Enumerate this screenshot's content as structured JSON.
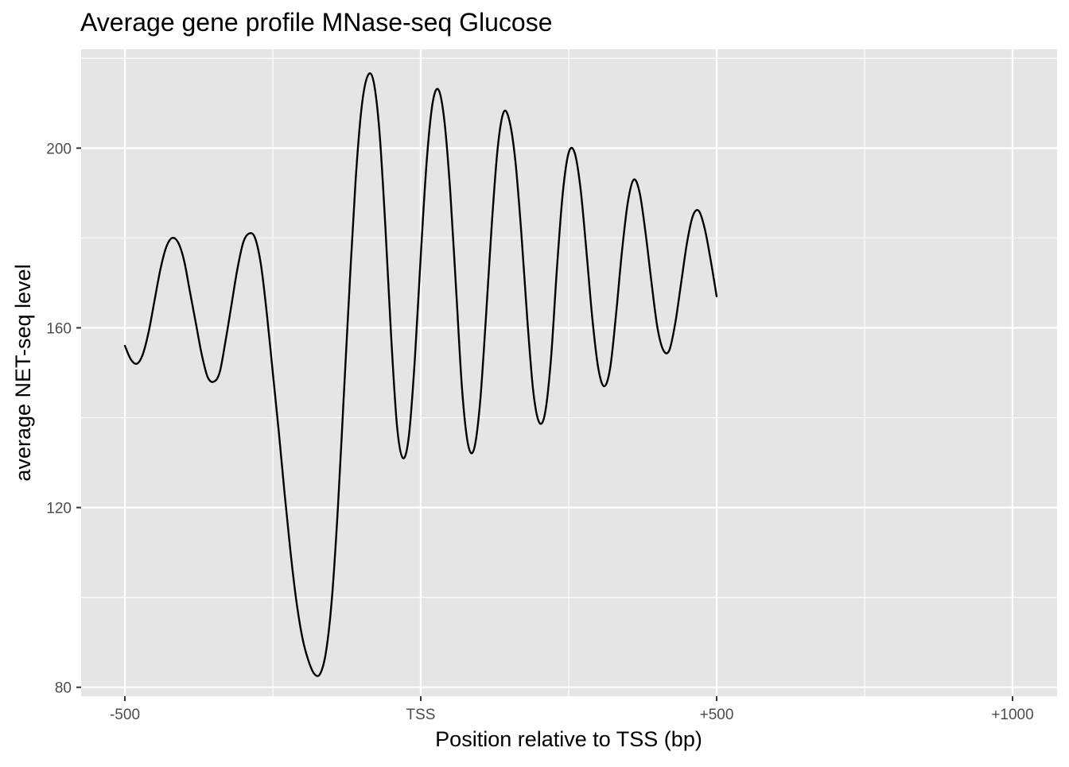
{
  "chart_data": {
    "type": "line",
    "title": "Average gene profile MNase-seq Glucose",
    "xlabel": "Position relative to TSS (bp)",
    "ylabel": "average NET-seq level",
    "xlim": [
      -500,
      1000
    ],
    "ylim": [
      78,
      222
    ],
    "grid": true,
    "x_ticks": [
      {
        "value": -500,
        "label": "-500"
      },
      {
        "value": 0,
        "label": "TSS"
      },
      {
        "value": 500,
        "label": "+500"
      },
      {
        "value": 1000,
        "label": "+1000"
      }
    ],
    "y_ticks": [
      {
        "value": 80,
        "label": "80"
      },
      {
        "value": 120,
        "label": "120"
      },
      {
        "value": 160,
        "label": "160"
      },
      {
        "value": 200,
        "label": "200"
      }
    ],
    "series": [
      {
        "color": "#000000",
        "points": [
          [
            -500,
            156
          ],
          [
            -490,
            153
          ],
          [
            -480,
            152
          ],
          [
            -470,
            154
          ],
          [
            -460,
            159
          ],
          [
            -450,
            166
          ],
          [
            -440,
            173
          ],
          [
            -430,
            178
          ],
          [
            -420,
            180
          ],
          [
            -410,
            179
          ],
          [
            -400,
            175
          ],
          [
            -390,
            168
          ],
          [
            -380,
            161
          ],
          [
            -370,
            154
          ],
          [
            -360,
            149
          ],
          [
            -350,
            148
          ],
          [
            -340,
            150
          ],
          [
            -330,
            157
          ],
          [
            -320,
            165
          ],
          [
            -310,
            173
          ],
          [
            -300,
            179
          ],
          [
            -290,
            181
          ],
          [
            -280,
            180
          ],
          [
            -270,
            174
          ],
          [
            -260,
            163
          ],
          [
            -250,
            150
          ],
          [
            -240,
            137
          ],
          [
            -230,
            123
          ],
          [
            -220,
            110
          ],
          [
            -210,
            99
          ],
          [
            -200,
            91
          ],
          [
            -190,
            86
          ],
          [
            -180,
            83
          ],
          [
            -170,
            83
          ],
          [
            -160,
            88
          ],
          [
            -150,
            100
          ],
          [
            -140,
            120
          ],
          [
            -130,
            145
          ],
          [
            -120,
            170
          ],
          [
            -110,
            193
          ],
          [
            -100,
            209
          ],
          [
            -90,
            216
          ],
          [
            -80,
            215
          ],
          [
            -70,
            204
          ],
          [
            -60,
            183
          ],
          [
            -50,
            158
          ],
          [
            -40,
            138
          ],
          [
            -30,
            131
          ],
          [
            -20,
            136
          ],
          [
            -10,
            153
          ],
          [
            0,
            176
          ],
          [
            10,
            197
          ],
          [
            20,
            210
          ],
          [
            30,
            213
          ],
          [
            40,
            206
          ],
          [
            50,
            190
          ],
          [
            60,
            168
          ],
          [
            70,
            146
          ],
          [
            80,
            134
          ],
          [
            90,
            133
          ],
          [
            100,
            143
          ],
          [
            110,
            162
          ],
          [
            120,
            183
          ],
          [
            130,
            200
          ],
          [
            140,
            208
          ],
          [
            150,
            206
          ],
          [
            160,
            197
          ],
          [
            170,
            181
          ],
          [
            180,
            162
          ],
          [
            190,
            146
          ],
          [
            200,
            139
          ],
          [
            210,
            141
          ],
          [
            220,
            153
          ],
          [
            230,
            173
          ],
          [
            240,
            190
          ],
          [
            250,
            199
          ],
          [
            260,
            199
          ],
          [
            270,
            191
          ],
          [
            280,
            177
          ],
          [
            290,
            162
          ],
          [
            300,
            151
          ],
          [
            310,
            147
          ],
          [
            320,
            151
          ],
          [
            330,
            163
          ],
          [
            340,
            177
          ],
          [
            350,
            188
          ],
          [
            360,
            193
          ],
          [
            370,
            190
          ],
          [
            380,
            181
          ],
          [
            390,
            170
          ],
          [
            400,
            160
          ],
          [
            410,
            155
          ],
          [
            420,
            155
          ],
          [
            430,
            161
          ],
          [
            440,
            170
          ],
          [
            450,
            179
          ],
          [
            460,
            185
          ],
          [
            470,
            186
          ],
          [
            480,
            182
          ],
          [
            490,
            175
          ],
          [
            500,
            167
          ]
        ]
      }
    ]
  }
}
